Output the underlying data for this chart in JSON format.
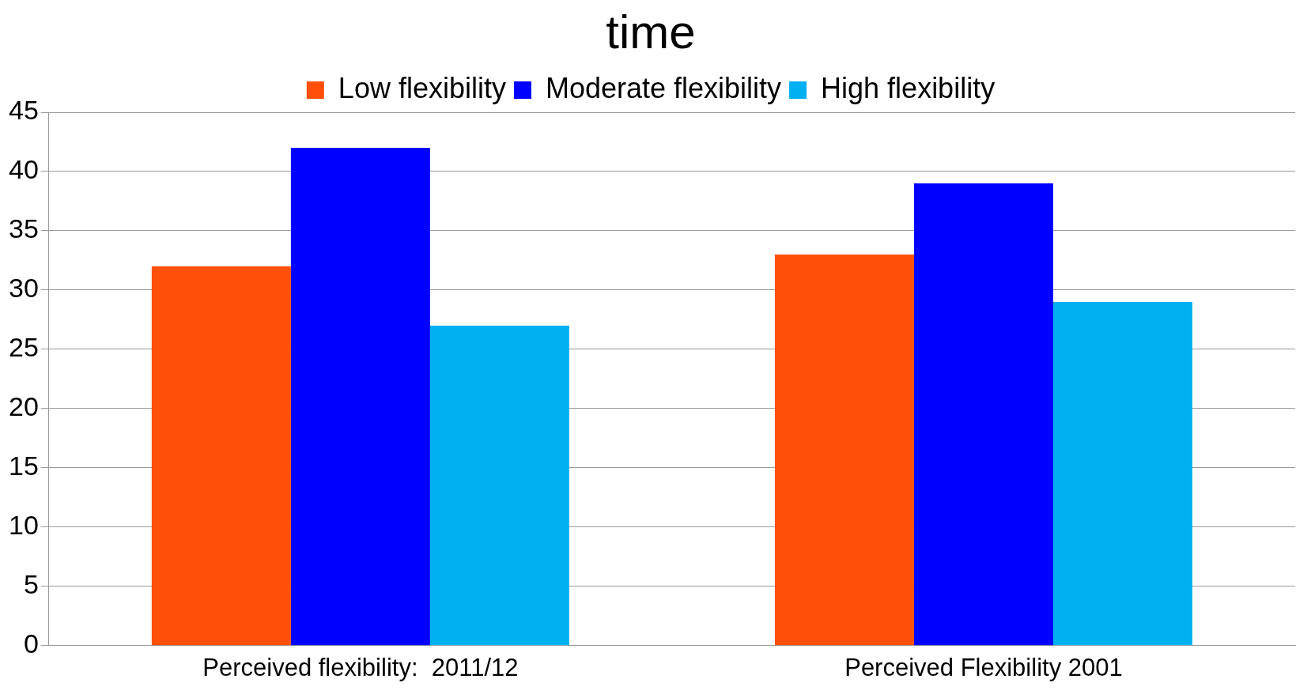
{
  "chart_data": {
    "type": "bar",
    "title": "time",
    "categories": [
      "Perceived flexibility:  2011/12",
      "Perceived Flexibility 2001"
    ],
    "series": [
      {
        "name": "Low flexibility",
        "color": "#ff500a",
        "values": [
          32,
          33
        ]
      },
      {
        "name": "Moderate flexibility",
        "color": "#0000ff",
        "values": [
          42,
          39
        ]
      },
      {
        "name": "High flexibility",
        "color": "#00b0f0",
        "values": [
          27,
          29
        ]
      }
    ],
    "ylim": [
      0,
      45
    ],
    "yticks": [
      0,
      5,
      10,
      15,
      20,
      25,
      30,
      35,
      40,
      45
    ],
    "grid": "y",
    "legend": "top"
  }
}
